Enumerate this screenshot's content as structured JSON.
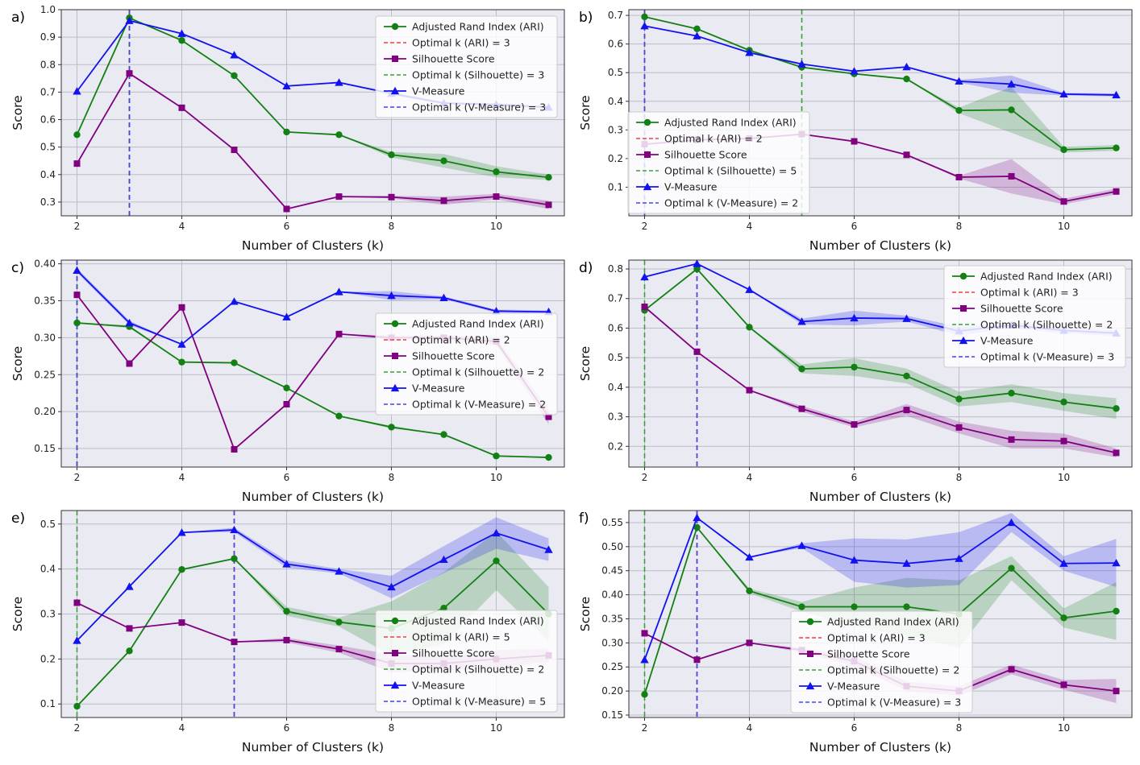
{
  "colors": {
    "ari": "#138013",
    "sil": "#800080",
    "vm": "#1212f0",
    "opt_ari": "#f04040",
    "opt_sil": "#3aa03a",
    "opt_vm": "#4545e8",
    "plot_bg": "#eaeaf2",
    "grid": "#bdbdc7"
  },
  "chart_data": [
    {
      "type": "line",
      "panel_label": "a)",
      "xlabel": "Number of Clusters (k)",
      "ylabel": "Score",
      "xlim": [
        1.7,
        11.3
      ],
      "ylim": [
        0.25,
        1.0
      ],
      "xticks": [
        2,
        4,
        6,
        8,
        10
      ],
      "yticks": [
        0.3,
        0.4,
        0.5,
        0.6,
        0.7,
        0.8,
        0.9,
        1.0
      ],
      "x": [
        2,
        3,
        4,
        5,
        6,
        7,
        8,
        9,
        10,
        11
      ],
      "series": [
        {
          "key": "ari",
          "name": "Adjusted Rand Index (ARI)",
          "marker": "circle",
          "values": [
            0.545,
            0.97,
            0.888,
            0.76,
            0.555,
            0.545,
            0.472,
            0.45,
            0.41,
            0.39
          ],
          "band": [
            0,
            0,
            0,
            0,
            0,
            0,
            0.01,
            0.025,
            0.02,
            0.01
          ]
        },
        {
          "key": "sil",
          "name": "Silhouette Score",
          "marker": "square",
          "values": [
            0.44,
            0.768,
            0.643,
            0.49,
            0.275,
            0.32,
            0.318,
            0.305,
            0.32,
            0.29
          ],
          "band": [
            0,
            0,
            0,
            0,
            0,
            0,
            0.005,
            0.015,
            0.01,
            0.015
          ]
        },
        {
          "key": "vm",
          "name": "V-Measure",
          "marker": "triangle",
          "values": [
            0.703,
            0.96,
            0.913,
            0.835,
            0.722,
            0.735,
            0.695,
            0.66,
            0.655,
            0.645
          ],
          "band": [
            0,
            0,
            0,
            0,
            0,
            0,
            0.005,
            0.005,
            0.005,
            0.005
          ]
        }
      ],
      "optimal": {
        "ari": 3,
        "sil": 3,
        "vm": 3
      },
      "legend": [
        "Adjusted Rand Index (ARI)",
        "Optimal k (ARI) = 3",
        "Silhouette Score",
        "Optimal k (Silhouette) = 3",
        "V-Measure",
        "Optimal k (V-Measure) = 3"
      ],
      "legend_position": "top-right"
    },
    {
      "type": "line",
      "panel_label": "b)",
      "xlabel": "Number of Clusters (k)",
      "ylabel": "Score",
      "xlim": [
        1.7,
        11.3
      ],
      "ylim": [
        0.0,
        0.72
      ],
      "xticks": [
        2,
        4,
        6,
        8,
        10
      ],
      "yticks": [
        0.1,
        0.2,
        0.3,
        0.4,
        0.5,
        0.6,
        0.7
      ],
      "x": [
        2,
        3,
        4,
        5,
        6,
        7,
        8,
        9,
        10,
        11
      ],
      "series": [
        {
          "key": "ari",
          "name": "Adjusted Rand Index (ARI)",
          "marker": "circle",
          "values": [
            0.695,
            0.653,
            0.578,
            0.519,
            0.496,
            0.478,
            0.368,
            0.37,
            0.231,
            0.237
          ],
          "band": [
            0,
            0,
            0,
            0,
            0,
            0,
            0.01,
            0.08,
            0.01,
            0.01
          ]
        },
        {
          "key": "sil",
          "name": "Silhouette Score",
          "marker": "square",
          "values": [
            0.25,
            0.265,
            0.27,
            0.285,
            0.26,
            0.213,
            0.135,
            0.138,
            0.05,
            0.085
          ],
          "band": [
            0,
            0,
            0,
            0,
            0,
            0,
            0.005,
            0.06,
            0.01,
            0.01
          ]
        },
        {
          "key": "vm",
          "name": "V-Measure",
          "marker": "triangle",
          "values": [
            0.663,
            0.628,
            0.57,
            0.53,
            0.505,
            0.52,
            0.47,
            0.46,
            0.425,
            0.422
          ],
          "band": [
            0,
            0,
            0,
            0,
            0,
            0,
            0.005,
            0.03,
            0.005,
            0.005
          ]
        }
      ],
      "optimal": {
        "ari": 2,
        "sil": 5,
        "vm": 2
      },
      "legend": [
        "Adjusted Rand Index (ARI)",
        "Optimal k (ARI) = 2",
        "Silhouette Score",
        "Optimal k (Silhouette) = 5",
        "V-Measure",
        "Optimal k (V-Measure) = 2"
      ],
      "legend_position": "bottom-left"
    },
    {
      "type": "line",
      "panel_label": "c)",
      "xlabel": "Number of Clusters (k)",
      "ylabel": "Score",
      "xlim": [
        1.7,
        11.3
      ],
      "ylim": [
        0.125,
        0.405
      ],
      "xticks": [
        2,
        4,
        6,
        8,
        10
      ],
      "yticks": [
        0.15,
        0.2,
        0.25,
        0.3,
        0.35,
        0.4
      ],
      "x": [
        2,
        3,
        4,
        5,
        6,
        7,
        8,
        9,
        10,
        11
      ],
      "series": [
        {
          "key": "ari",
          "name": "Adjusted Rand Index (ARI)",
          "marker": "circle",
          "values": [
            0.32,
            0.315,
            0.267,
            0.266,
            0.232,
            0.194,
            0.179,
            0.169,
            0.14,
            0.138
          ],
          "band": [
            0,
            0.002,
            0,
            0,
            0,
            0,
            0.002,
            0,
            0,
            0
          ]
        },
        {
          "key": "sil",
          "name": "Silhouette Score",
          "marker": "square",
          "values": [
            0.358,
            0.265,
            0.341,
            0.149,
            0.21,
            0.305,
            0.3,
            0.3,
            0.295,
            0.193
          ],
          "band": [
            0,
            0,
            0,
            0,
            0,
            0,
            0.003,
            0.003,
            0.005,
            0.01
          ]
        },
        {
          "key": "vm",
          "name": "V-Measure",
          "marker": "triangle",
          "values": [
            0.391,
            0.32,
            0.291,
            0.349,
            0.328,
            0.362,
            0.357,
            0.354,
            0.336,
            0.335
          ],
          "band": [
            0.003,
            0.003,
            0,
            0,
            0,
            0,
            0.006,
            0.002,
            0.002,
            0.002
          ]
        }
      ],
      "optimal": {
        "ari": 2,
        "sil": 2,
        "vm": 2
      },
      "legend": [
        "Adjusted Rand Index (ARI)",
        "Optimal k (ARI) = 2",
        "Silhouette Score",
        "Optimal k (Silhouette) = 2",
        "V-Measure",
        "Optimal k (V-Measure) = 2"
      ],
      "legend_position": "center-right"
    },
    {
      "type": "line",
      "panel_label": "d)",
      "xlabel": "Number of Clusters (k)",
      "ylabel": "Score",
      "xlim": [
        1.7,
        11.3
      ],
      "ylim": [
        0.13,
        0.83
      ],
      "xticks": [
        2,
        4,
        6,
        8,
        10
      ],
      "yticks": [
        0.2,
        0.3,
        0.4,
        0.5,
        0.6,
        0.7,
        0.8
      ],
      "x": [
        2,
        3,
        4,
        5,
        6,
        7,
        8,
        9,
        10,
        11
      ],
      "series": [
        {
          "key": "ari",
          "name": "Adjusted Rand Index (ARI)",
          "marker": "circle",
          "values": [
            0.66,
            0.8,
            0.603,
            0.462,
            0.468,
            0.438,
            0.36,
            0.38,
            0.35,
            0.328
          ],
          "band": [
            0,
            0,
            0,
            0.015,
            0.03,
            0.025,
            0.025,
            0.03,
            0.03,
            0.035
          ]
        },
        {
          "key": "sil",
          "name": "Silhouette Score",
          "marker": "square",
          "values": [
            0.672,
            0.52,
            0.39,
            0.327,
            0.274,
            0.323,
            0.264,
            0.223,
            0.218,
            0.178
          ],
          "band": [
            0,
            0,
            0,
            0.01,
            0.01,
            0.02,
            0.02,
            0.03,
            0.025,
            0.015
          ]
        },
        {
          "key": "vm",
          "name": "V-Measure",
          "marker": "triangle",
          "values": [
            0.773,
            0.818,
            0.73,
            0.622,
            0.634,
            0.632,
            0.59,
            0.61,
            0.592,
            0.583
          ],
          "band": [
            0,
            0,
            0,
            0.01,
            0.025,
            0.01,
            0.015,
            0.01,
            0.01,
            0.01
          ]
        }
      ],
      "optimal": {
        "ari": 3,
        "sil": 2,
        "vm": 3
      },
      "legend": [
        "Adjusted Rand Index (ARI)",
        "Optimal k (ARI) = 3",
        "Silhouette Score",
        "Optimal k (Silhouette) = 2",
        "V-Measure",
        "Optimal k (V-Measure) = 3"
      ],
      "legend_position": "top-right"
    },
    {
      "type": "line",
      "panel_label": "e)",
      "xlabel": "Number of Clusters (k)",
      "ylabel": "Score",
      "xlim": [
        1.7,
        11.3
      ],
      "ylim": [
        0.07,
        0.53
      ],
      "xticks": [
        2,
        4,
        6,
        8,
        10
      ],
      "yticks": [
        0.1,
        0.2,
        0.3,
        0.4,
        0.5
      ],
      "x": [
        2,
        3,
        4,
        5,
        6,
        7,
        8,
        9,
        10,
        11
      ],
      "series": [
        {
          "key": "ari",
          "name": "Adjusted Rand Index (ARI)",
          "marker": "circle",
          "values": [
            0.095,
            0.218,
            0.399,
            0.423,
            0.306,
            0.282,
            0.268,
            0.313,
            0.418,
            0.3
          ],
          "band": [
            0,
            0,
            0,
            0,
            0.01,
            0.01,
            0.06,
            0.08,
            0.065,
            0.06
          ]
        },
        {
          "key": "sil",
          "name": "Silhouette Score",
          "marker": "square",
          "values": [
            0.325,
            0.268,
            0.281,
            0.238,
            0.242,
            0.222,
            0.19,
            0.19,
            0.2,
            0.208
          ],
          "band": [
            0,
            0,
            0,
            0,
            0.005,
            0.008,
            0.02,
            0.015,
            0.02,
            0.015
          ]
        },
        {
          "key": "vm",
          "name": "V-Measure",
          "marker": "triangle",
          "values": [
            0.241,
            0.361,
            0.481,
            0.487,
            0.411,
            0.395,
            0.36,
            0.421,
            0.48,
            0.443
          ],
          "band": [
            0,
            0,
            0,
            0.005,
            0.008,
            0.005,
            0.025,
            0.03,
            0.035,
            0.025
          ]
        }
      ],
      "optimal": {
        "ari": 5,
        "sil": 2,
        "vm": 5
      },
      "legend": [
        "Adjusted Rand Index (ARI)",
        "Optimal k (ARI) = 5",
        "Silhouette Score",
        "Optimal k (Silhouette) = 2",
        "V-Measure",
        "Optimal k (V-Measure) = 5"
      ],
      "legend_position": "bottom-right"
    },
    {
      "type": "line",
      "panel_label": "f)",
      "xlabel": "Number of Clusters (k)",
      "ylabel": "Score",
      "xlim": [
        1.7,
        11.3
      ],
      "ylim": [
        0.145,
        0.575
      ],
      "xticks": [
        2,
        4,
        6,
        8,
        10
      ],
      "yticks": [
        0.15,
        0.2,
        0.25,
        0.3,
        0.35,
        0.4,
        0.45,
        0.5,
        0.55
      ],
      "x": [
        2,
        3,
        4,
        5,
        6,
        7,
        8,
        9,
        10,
        11
      ],
      "series": [
        {
          "key": "ari",
          "name": "Adjusted Rand Index (ARI)",
          "marker": "circle",
          "values": [
            0.193,
            0.54,
            0.408,
            0.375,
            0.375,
            0.375,
            0.36,
            0.455,
            0.352,
            0.366
          ],
          "band": [
            0,
            0,
            0.005,
            0.01,
            0.04,
            0.06,
            0.07,
            0.025,
            0.02,
            0.06
          ]
        },
        {
          "key": "sil",
          "name": "Silhouette Score",
          "marker": "square",
          "values": [
            0.32,
            0.265,
            0.3,
            0.285,
            0.262,
            0.21,
            0.2,
            0.245,
            0.213,
            0.2
          ],
          "band": [
            0,
            0,
            0,
            0.005,
            0.01,
            0.01,
            0.01,
            0.01,
            0.01,
            0.025
          ]
        },
        {
          "key": "vm",
          "name": "V-Measure",
          "marker": "triangle",
          "values": [
            0.265,
            0.56,
            0.478,
            0.502,
            0.472,
            0.465,
            0.475,
            0.55,
            0.465,
            0.466
          ],
          "band": [
            0,
            0,
            0,
            0.005,
            0.045,
            0.05,
            0.055,
            0.02,
            0.015,
            0.05
          ]
        }
      ],
      "optimal": {
        "ari": 3,
        "sil": 2,
        "vm": 3
      },
      "legend": [
        "Adjusted Rand Index (ARI)",
        "Optimal k (ARI) = 3",
        "Silhouette Score",
        "Optimal k (Silhouette) = 2",
        "V-Measure",
        "Optimal k (V-Measure) = 3"
      ],
      "legend_position": "bottom-center"
    }
  ]
}
